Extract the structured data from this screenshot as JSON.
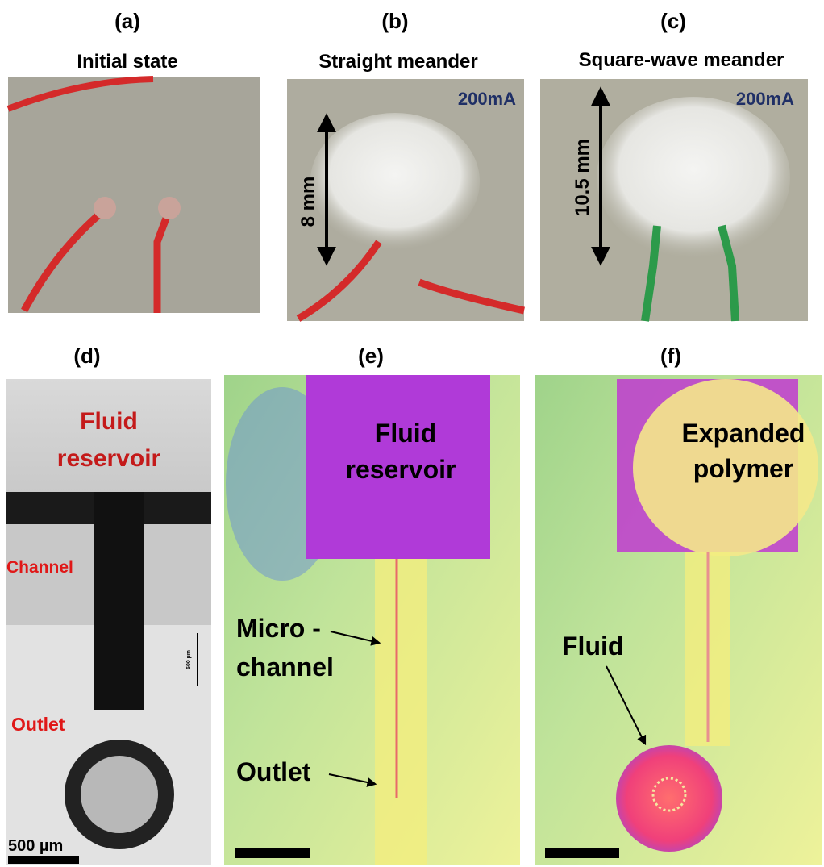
{
  "panels": [
    {
      "label": "(a)",
      "title": "Initial state"
    },
    {
      "label": "(b)",
      "title": "Straight meander",
      "current": "200mA",
      "dimension": "8 mm"
    },
    {
      "label": "(c)",
      "title": "Square-wave meander",
      "current": "200mA",
      "dimension": "10.5 mm"
    },
    {
      "label": "(d)",
      "annotations": [
        "Fluid",
        "reservoir",
        "Channel",
        "Outlet"
      ],
      "inset_scale": "500 µm",
      "scale_bar": "500 µm"
    },
    {
      "label": "(e)",
      "annotations": [
        "Fluid",
        "reservoir",
        "Micro -",
        "channel",
        "Outlet"
      ]
    },
    {
      "label": "(f)",
      "annotations": [
        "Expanded",
        "polymer",
        "Fluid"
      ]
    }
  ]
}
